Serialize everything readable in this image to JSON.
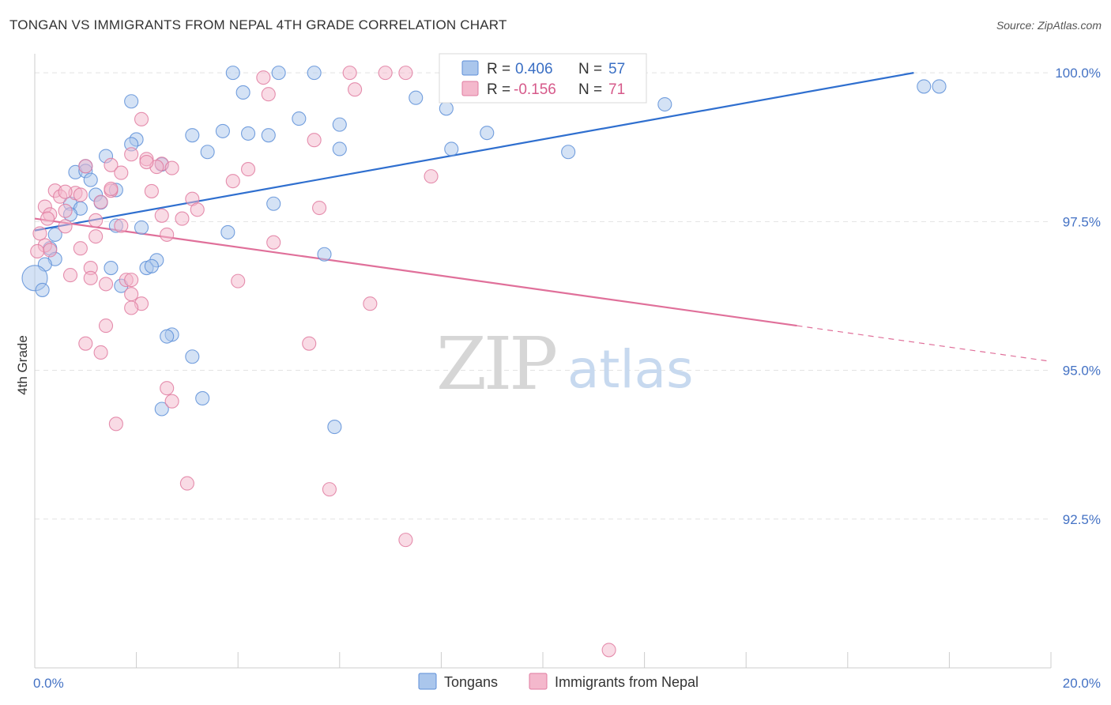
{
  "title": "TONGAN VS IMMIGRANTS FROM NEPAL 4TH GRADE CORRELATION CHART",
  "source": "Source: ZipAtlas.com",
  "watermark": {
    "zip": "ZIP",
    "atlas": "atlas"
  },
  "colors": {
    "blue_fill": "#aac6ec",
    "blue_stroke": "#5d8fd8",
    "blue_line": "#2f6fcf",
    "pink_fill": "#f4b8cc",
    "pink_stroke": "#e07ba0",
    "pink_line": "#e0709a",
    "grid": "#e3e3e3",
    "tick_text": "#4472c4"
  },
  "legend": {
    "rows": [
      {
        "r_label": "R =",
        "r_value": "0.406",
        "n_label": "N =",
        "n_value": "57"
      },
      {
        "r_label": "R =",
        "r_value": "-0.156",
        "n_label": "N =",
        "n_value": "71"
      }
    ]
  },
  "chart_data": {
    "type": "scatter",
    "title": "TONGAN VS IMMIGRANTS FROM NEPAL 4TH GRADE CORRELATION CHART",
    "xlabel": "",
    "ylabel": "4th Grade",
    "xlim": [
      0,
      20
    ],
    "ylim": [
      90.0,
      100.4
    ],
    "x_tick_labels": [
      {
        "value": 0,
        "label": "0.0%"
      },
      {
        "value": 20,
        "label": "20.0%"
      }
    ],
    "y_tick_labels": [
      {
        "value": 100.0,
        "label": "100.0%"
      },
      {
        "value": 97.5,
        "label": "97.5%"
      },
      {
        "value": 95.0,
        "label": "95.0%"
      },
      {
        "value": 92.5,
        "label": "92.5%"
      }
    ],
    "legend_position": "top-center",
    "series": [
      {
        "name": "Tongans",
        "color_key": "blue",
        "r": 0.406,
        "n": 57,
        "trendline": {
          "x": [
            0,
            17.3
          ],
          "y": [
            97.35,
            100.0
          ]
        },
        "points": [
          [
            3.9,
            100.0
          ],
          [
            4.8,
            100.0
          ],
          [
            5.5,
            100.0
          ],
          [
            17.5,
            99.77
          ],
          [
            17.8,
            99.77
          ],
          [
            4.1,
            99.67
          ],
          [
            7.5,
            99.58
          ],
          [
            1.9,
            99.52
          ],
          [
            12.4,
            99.47
          ],
          [
            8.1,
            99.4
          ],
          [
            5.2,
            99.23
          ],
          [
            6.0,
            99.13
          ],
          [
            3.7,
            99.02
          ],
          [
            4.2,
            98.98
          ],
          [
            4.6,
            98.95
          ],
          [
            3.1,
            98.95
          ],
          [
            8.9,
            98.99
          ],
          [
            2.0,
            98.88
          ],
          [
            1.9,
            98.8
          ],
          [
            6.0,
            98.72
          ],
          [
            8.2,
            98.72
          ],
          [
            3.4,
            98.67
          ],
          [
            10.5,
            98.67
          ],
          [
            1.4,
            98.6
          ],
          [
            1.0,
            98.43
          ],
          [
            2.5,
            98.46
          ],
          [
            0.8,
            98.33
          ],
          [
            1.0,
            98.35
          ],
          [
            1.1,
            98.2
          ],
          [
            1.6,
            98.03
          ],
          [
            1.2,
            97.95
          ],
          [
            1.3,
            97.82
          ],
          [
            0.7,
            97.8
          ],
          [
            4.7,
            97.8
          ],
          [
            0.9,
            97.72
          ],
          [
            0.7,
            97.62
          ],
          [
            1.6,
            97.43
          ],
          [
            2.1,
            97.4
          ],
          [
            3.8,
            97.32
          ],
          [
            0.4,
            97.28
          ],
          [
            0.3,
            97.05
          ],
          [
            5.7,
            96.95
          ],
          [
            0.4,
            96.87
          ],
          [
            2.4,
            96.85
          ],
          [
            0.2,
            96.78
          ],
          [
            1.5,
            96.72
          ],
          [
            2.2,
            96.72
          ],
          [
            2.3,
            96.75
          ],
          [
            0.0,
            96.55
          ],
          [
            1.7,
            96.42
          ],
          [
            2.7,
            95.6
          ],
          [
            2.6,
            95.57
          ],
          [
            3.1,
            95.23
          ],
          [
            3.3,
            94.53
          ],
          [
            2.5,
            94.35
          ],
          [
            5.9,
            94.05
          ],
          [
            0.15,
            96.35
          ]
        ]
      },
      {
        "name": "Immigrants from Nepal",
        "color_key": "pink",
        "r": -0.156,
        "n": 71,
        "trendline": {
          "x": [
            0,
            15.0
          ],
          "y": [
            97.55,
            95.75
          ]
        },
        "trendline_dashed": {
          "x": [
            15.0,
            20.0
          ],
          "y": [
            95.75,
            95.15
          ]
        },
        "points": [
          [
            6.2,
            100.0
          ],
          [
            6.9,
            100.0
          ],
          [
            7.3,
            100.0
          ],
          [
            4.5,
            99.92
          ],
          [
            6.3,
            99.72
          ],
          [
            4.6,
            99.64
          ],
          [
            2.1,
            99.22
          ],
          [
            5.5,
            98.87
          ],
          [
            1.9,
            98.63
          ],
          [
            2.2,
            98.55
          ],
          [
            2.5,
            98.47
          ],
          [
            1.5,
            98.45
          ],
          [
            1.0,
            98.43
          ],
          [
            2.4,
            98.42
          ],
          [
            2.7,
            98.4
          ],
          [
            4.2,
            98.38
          ],
          [
            1.7,
            98.32
          ],
          [
            7.8,
            98.26
          ],
          [
            3.9,
            98.18
          ],
          [
            0.4,
            98.02
          ],
          [
            1.5,
            98.02
          ],
          [
            2.3,
            98.01
          ],
          [
            0.8,
            97.98
          ],
          [
            0.9,
            97.95
          ],
          [
            0.5,
            97.92
          ],
          [
            3.1,
            97.88
          ],
          [
            1.3,
            97.83
          ],
          [
            0.2,
            97.75
          ],
          [
            5.6,
            97.73
          ],
          [
            3.2,
            97.7
          ],
          [
            0.6,
            97.68
          ],
          [
            0.3,
            97.62
          ],
          [
            2.5,
            97.6
          ],
          [
            2.9,
            97.55
          ],
          [
            0.25,
            97.55
          ],
          [
            1.2,
            97.52
          ],
          [
            1.7,
            97.43
          ],
          [
            0.6,
            97.42
          ],
          [
            2.6,
            97.28
          ],
          [
            1.2,
            97.25
          ],
          [
            0.9,
            97.05
          ],
          [
            4.7,
            97.15
          ],
          [
            0.2,
            97.1
          ],
          [
            0.3,
            97.02
          ],
          [
            1.1,
            96.72
          ],
          [
            0.7,
            96.6
          ],
          [
            1.1,
            96.55
          ],
          [
            1.8,
            96.52
          ],
          [
            1.9,
            96.52
          ],
          [
            1.4,
            96.45
          ],
          [
            4.0,
            96.5
          ],
          [
            1.9,
            96.28
          ],
          [
            2.1,
            96.12
          ],
          [
            1.9,
            96.05
          ],
          [
            6.6,
            96.12
          ],
          [
            1.4,
            95.75
          ],
          [
            1.0,
            95.45
          ],
          [
            5.4,
            95.45
          ],
          [
            1.3,
            95.3
          ],
          [
            2.6,
            94.7
          ],
          [
            2.7,
            94.48
          ],
          [
            1.6,
            94.1
          ],
          [
            3.0,
            93.1
          ],
          [
            5.8,
            93.0
          ],
          [
            7.3,
            92.15
          ],
          [
            11.3,
            90.3
          ],
          [
            0.1,
            97.3
          ],
          [
            0.05,
            97.0
          ],
          [
            1.5,
            98.05
          ],
          [
            2.2,
            98.5
          ],
          [
            0.6,
            98.0
          ]
        ]
      }
    ]
  }
}
